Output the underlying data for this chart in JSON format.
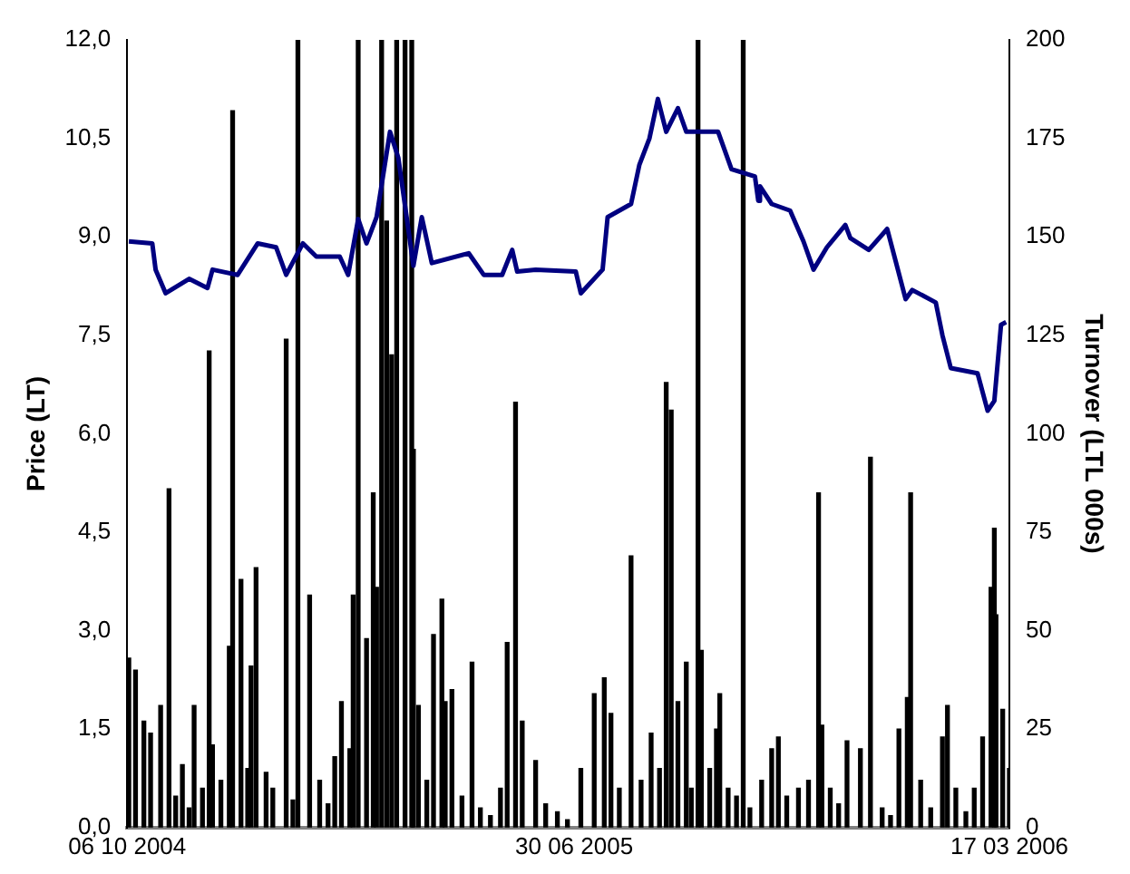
{
  "chart_data": {
    "type": "bar",
    "ylabel": "Price (LT)",
    "y2label": "Turnover (LTL 000s)",
    "legend": false,
    "grid": false,
    "xlim": [
      "2004-10-06",
      "2006-03-17"
    ],
    "xticks": [
      {
        "value": "2004-10-06",
        "label": "06 10 2004"
      },
      {
        "value": "2005-06-30",
        "label": "30 06 2005"
      },
      {
        "value": "2006-03-17",
        "label": "17 03 2006"
      }
    ],
    "ylim": [
      0,
      12
    ],
    "yticks": [
      {
        "value": 0,
        "label": "0,0"
      },
      {
        "value": 1.5,
        "label": "1,5"
      },
      {
        "value": 3,
        "label": "3,0"
      },
      {
        "value": 4.5,
        "label": "4,5"
      },
      {
        "value": 6,
        "label": "6,0"
      },
      {
        "value": 7.5,
        "label": "7,5"
      },
      {
        "value": 9,
        "label": "9,0"
      },
      {
        "value": 10.5,
        "label": "10,5"
      },
      {
        "value": 12,
        "label": "12,0"
      }
    ],
    "y2lim": [
      0,
      200
    ],
    "y2ticks": [
      0,
      25,
      50,
      75,
      100,
      125,
      150,
      175,
      200
    ],
    "series": [
      {
        "axis": "y2",
        "color": "#000000",
        "x": [
          "2004-10-07",
          "2004-10-11",
          "2004-10-16",
          "2004-10-20",
          "2004-10-26",
          "2004-10-31",
          "2004-11-04",
          "2004-11-08",
          "2004-11-12",
          "2004-11-15",
          "2004-11-20",
          "2004-11-24",
          "2004-11-26",
          "2004-12-01",
          "2004-12-06",
          "2004-12-08",
          "2004-12-13",
          "2004-12-17",
          "2004-12-19",
          "2004-12-22",
          "2004-12-28",
          "2005-01-01",
          "2005-01-09",
          "2005-01-13",
          "2005-01-16",
          "2005-01-23",
          "2005-01-29",
          "2005-02-03",
          "2005-02-07",
          "2005-02-11",
          "2005-02-16",
          "2005-02-18",
          "2005-02-21",
          "2005-02-26",
          "2005-03-02",
          "2005-03-04",
          "2005-03-07",
          "2005-03-10",
          "2005-03-13",
          "2005-03-16",
          "2005-03-21",
          "2005-03-25",
          "2005-03-26",
          "2005-03-29",
          "2005-04-03",
          "2005-04-07",
          "2005-04-12",
          "2005-04-14",
          "2005-04-18",
          "2005-04-24",
          "2005-04-30",
          "2005-05-05",
          "2005-05-11",
          "2005-05-17",
          "2005-05-21",
          "2005-05-26",
          "2005-05-30",
          "2005-06-07",
          "2005-06-13",
          "2005-06-20",
          "2005-06-26",
          "2005-07-04",
          "2005-07-12",
          "2005-07-18",
          "2005-07-22",
          "2005-07-27",
          "2005-08-03",
          "2005-08-09",
          "2005-08-15",
          "2005-08-20",
          "2005-08-24",
          "2005-08-27",
          "2005-08-31",
          "2005-09-05",
          "2005-09-08",
          "2005-09-12",
          "2005-09-14",
          "2005-09-19",
          "2005-09-23",
          "2005-09-25",
          "2005-09-30",
          "2005-10-05",
          "2005-10-09",
          "2005-10-13",
          "2005-10-20",
          "2005-10-26",
          "2005-10-30",
          "2005-11-04",
          "2005-11-11",
          "2005-11-17",
          "2005-11-23",
          "2005-11-25",
          "2005-11-30",
          "2005-12-05",
          "2005-12-10",
          "2005-12-18",
          "2005-12-24",
          "2005-12-31",
          "2006-01-05",
          "2006-01-10",
          "2006-01-15",
          "2006-01-17",
          "2006-01-23",
          "2006-01-29",
          "2006-02-05",
          "2006-02-08",
          "2006-02-13",
          "2006-02-19",
          "2006-02-24",
          "2006-03-01",
          "2006-03-06",
          "2006-03-08",
          "2006-03-09",
          "2006-03-13",
          "2006-03-17"
        ],
        "values": [
          43,
          40,
          27,
          24,
          31,
          86,
          8,
          16,
          5,
          31,
          10,
          121,
          21,
          12,
          46,
          182,
          63,
          15,
          41,
          66,
          14,
          10,
          124,
          7,
          200,
          59,
          12,
          6,
          18,
          32,
          20,
          59,
          200,
          48,
          85,
          61,
          200,
          154,
          120,
          200,
          200,
          200,
          96,
          31,
          12,
          49,
          58,
          32,
          35,
          8,
          42,
          5,
          3,
          10,
          47,
          108,
          27,
          17,
          6,
          4,
          2,
          15,
          34,
          38,
          29,
          10,
          69,
          12,
          24,
          15,
          113,
          106,
          32,
          42,
          10,
          200,
          45,
          15,
          25,
          34,
          10,
          8,
          200,
          5,
          12,
          20,
          23,
          8,
          10,
          12,
          85,
          26,
          10,
          6,
          22,
          20,
          94,
          5,
          3,
          25,
          33,
          85,
          12,
          5,
          23,
          31,
          10,
          4,
          10,
          23,
          61,
          76,
          54,
          30,
          15
        ]
      },
      {
        "type": "line",
        "axis": "y",
        "color": "#000080",
        "x": [
          "2004-10-07",
          "2004-10-21",
          "2004-10-23",
          "2004-10-29",
          "2004-11-12",
          "2004-11-23",
          "2004-11-26",
          "2004-12-11",
          "2004-12-23",
          "2005-01-03",
          "2005-01-09",
          "2005-01-19",
          "2005-01-27",
          "2005-02-10",
          "2005-02-15",
          "2005-02-21",
          "2005-02-26",
          "2005-03-04",
          "2005-03-12",
          "2005-03-17",
          "2005-03-26",
          "2005-03-31",
          "2005-04-06",
          "2005-04-28",
          "2005-05-07",
          "2005-05-18",
          "2005-05-24",
          "2005-05-27",
          "2005-06-07",
          "2005-07-01",
          "2005-07-04",
          "2005-07-17",
          "2005-07-20",
          "2005-08-03",
          "2005-08-08",
          "2005-08-14",
          "2005-08-19",
          "2005-08-24",
          "2005-08-31",
          "2005-09-05",
          "2005-09-24",
          "2005-10-02",
          "2005-10-16",
          "2005-10-18",
          "2005-10-19",
          "2005-10-26",
          "2005-11-06",
          "2005-11-14",
          "2005-11-20",
          "2005-11-28",
          "2005-12-09",
          "2005-12-12",
          "2005-12-23",
          "2006-01-03",
          "2006-01-14",
          "2006-01-18",
          "2006-02-01",
          "2006-02-05",
          "2006-02-10",
          "2006-02-26",
          "2006-03-04",
          "2006-03-08",
          "2006-03-12",
          "2006-03-15"
        ],
        "values": [
          8.93,
          8.9,
          8.5,
          8.14,
          8.36,
          8.22,
          8.5,
          8.42,
          8.9,
          8.84,
          8.42,
          8.9,
          8.7,
          8.7,
          8.42,
          9.27,
          8.9,
          9.3,
          10.6,
          10.2,
          8.56,
          9.3,
          8.6,
          8.75,
          8.42,
          8.42,
          8.8,
          8.47,
          8.5,
          8.47,
          8.14,
          8.5,
          9.3,
          9.5,
          10.1,
          10.5,
          11.1,
          10.6,
          10.96,
          10.6,
          10.6,
          10.03,
          9.92,
          9.55,
          9.77,
          9.5,
          9.4,
          8.93,
          8.5,
          8.84,
          9.18,
          8.98,
          8.8,
          9.12,
          8.05,
          8.19,
          8.0,
          7.5,
          7.0,
          6.92,
          6.35,
          6.5,
          7.66,
          7.7
        ]
      }
    ]
  }
}
